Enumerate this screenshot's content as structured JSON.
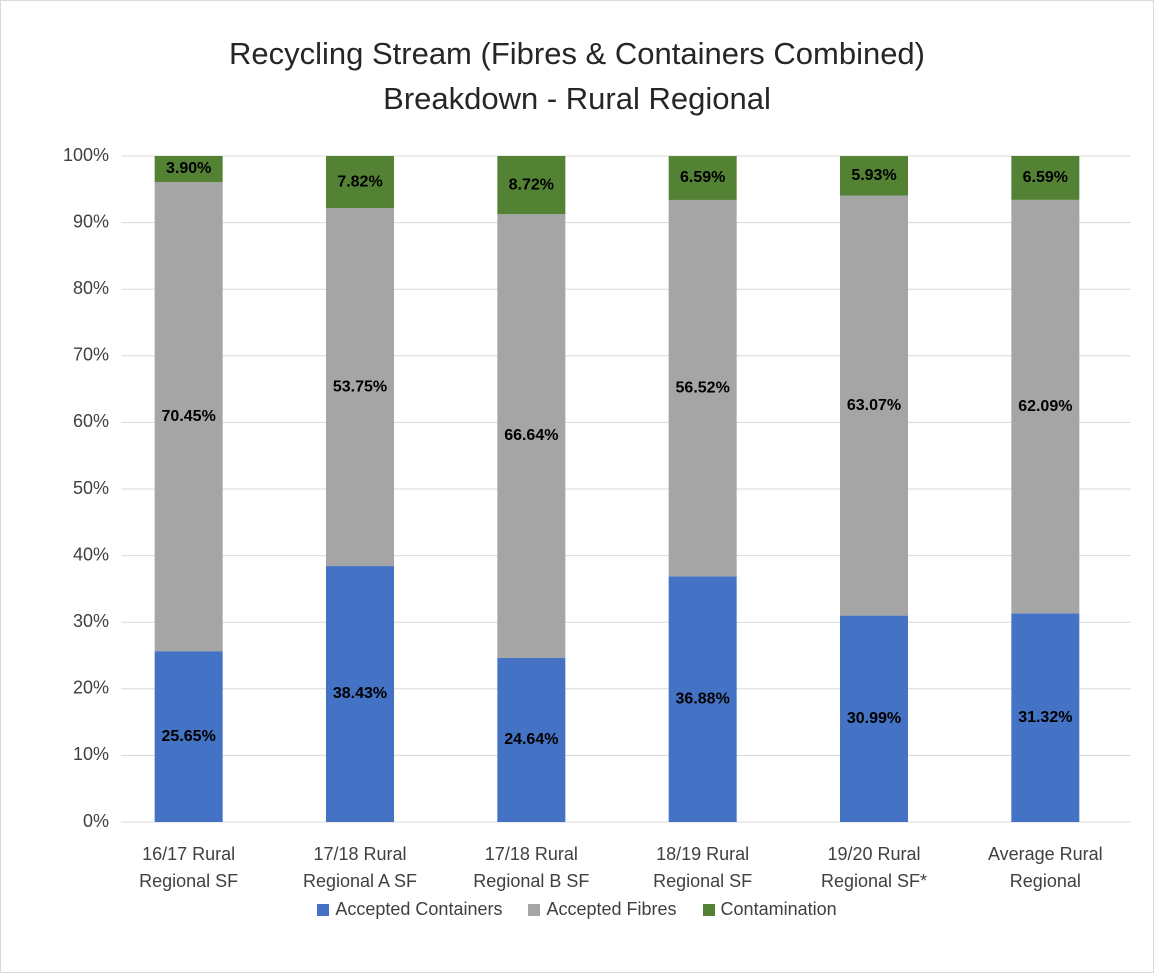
{
  "chart_data": {
    "type": "stacked_bar",
    "title": "Recycling Stream (Fibres & Containers Combined)\nBreakdown - Rural Regional",
    "categories": [
      "16/17 Rural\nRegional SF",
      "17/18 Rural\nRegional A SF",
      "17/18 Rural\nRegional B SF",
      "18/19 Rural\nRegional SF",
      "19/20 Rural\nRegional SF*",
      "Average Rural\nRegional"
    ],
    "series": [
      {
        "name": "Accepted Containers",
        "color": "#4472c4",
        "values": [
          25.65,
          38.43,
          24.64,
          36.88,
          30.99,
          31.32
        ],
        "value_labels": [
          "25.65%",
          "38.43%",
          "24.64%",
          "36.88%",
          "30.99%",
          "31.32%"
        ]
      },
      {
        "name": "Accepted Fibres",
        "color": "#a5a5a5",
        "values": [
          70.45,
          53.75,
          66.64,
          56.52,
          63.07,
          62.09
        ],
        "value_labels": [
          "70.45%",
          "53.75%",
          "66.64%",
          "56.52%",
          "63.07%",
          "62.09%"
        ]
      },
      {
        "name": "Contamination",
        "color": "#548235",
        "values": [
          3.9,
          7.82,
          8.72,
          6.59,
          5.93,
          6.59
        ],
        "value_labels": [
          "3.90%",
          "7.82%",
          "8.72%",
          "6.59%",
          "5.93%",
          "6.59%"
        ]
      }
    ],
    "ylim": [
      0,
      100
    ],
    "yticks": [
      {
        "value": 0,
        "label": "0%"
      },
      {
        "value": 10,
        "label": "10%"
      },
      {
        "value": 20,
        "label": "20%"
      },
      {
        "value": 30,
        "label": "30%"
      },
      {
        "value": 40,
        "label": "40%"
      },
      {
        "value": 50,
        "label": "50%"
      },
      {
        "value": 60,
        "label": "60%"
      },
      {
        "value": 70,
        "label": "70%"
      },
      {
        "value": 80,
        "label": "80%"
      },
      {
        "value": 90,
        "label": "90%"
      },
      {
        "value": 100,
        "label": "100%"
      }
    ],
    "grid": true,
    "legend": "bottom"
  }
}
